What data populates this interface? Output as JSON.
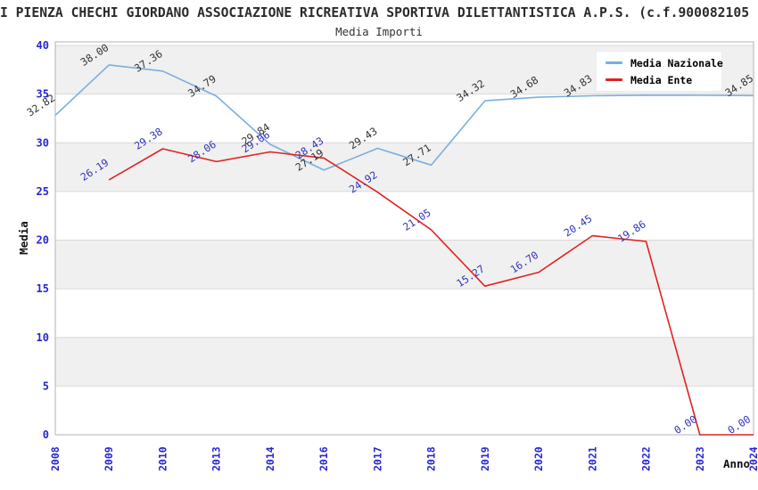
{
  "header": {
    "title": "I PIENZA CHECHI GIORDANO ASSOCIAZIONE RICREATIVA SPORTIVA DILETTANTISTICA A.P.S. (c.f.900082105",
    "subtitle": "Media Importi"
  },
  "chart_data": {
    "type": "line",
    "title": "Media Importi",
    "xlabel": "Anno",
    "ylabel": "Media",
    "ylim": [
      0,
      40
    ],
    "ytick_step": 5,
    "grid": true,
    "legend_position": "top-right",
    "categories": [
      "2008",
      "2009",
      "2010",
      "2013",
      "2014",
      "2016",
      "2017",
      "2018",
      "2019",
      "2020",
      "2021",
      "2022",
      "2023",
      "2024"
    ],
    "series": [
      {
        "name": "Media Nazionale",
        "color": "#7aaede",
        "label_color": "#333333",
        "values": [
          32.82,
          38.0,
          37.36,
          34.79,
          29.84,
          27.19,
          29.43,
          27.71,
          34.32,
          34.68,
          34.83,
          34.88,
          34.87,
          34.85
        ],
        "labels": [
          "32.82",
          "38.00",
          "37.36",
          "34.79",
          "29.84",
          "27.19",
          "29.43",
          "27.71",
          "34.32",
          "34.68",
          "34.83",
          "",
          "",
          "34.85"
        ]
      },
      {
        "name": "Media Ente",
        "color": "#e02222",
        "label_color": "#3333bb",
        "values": [
          null,
          26.19,
          29.38,
          28.06,
          29.06,
          28.43,
          24.92,
          21.05,
          15.27,
          16.7,
          20.45,
          19.86,
          0.0,
          0.0
        ],
        "labels": [
          "",
          "26.19",
          "29.38",
          "28.06",
          "29.06",
          "28.43",
          "24.92",
          "21.05",
          "15.27",
          "16.70",
          "20.45",
          "19.86",
          "0.00",
          "0.00"
        ]
      }
    ],
    "colors": {
      "band": "#f0f0f0",
      "grid": "#d9d9d9",
      "border": "#b3b3b3",
      "tick": "#2727cf",
      "axis_label": "#111111"
    }
  }
}
